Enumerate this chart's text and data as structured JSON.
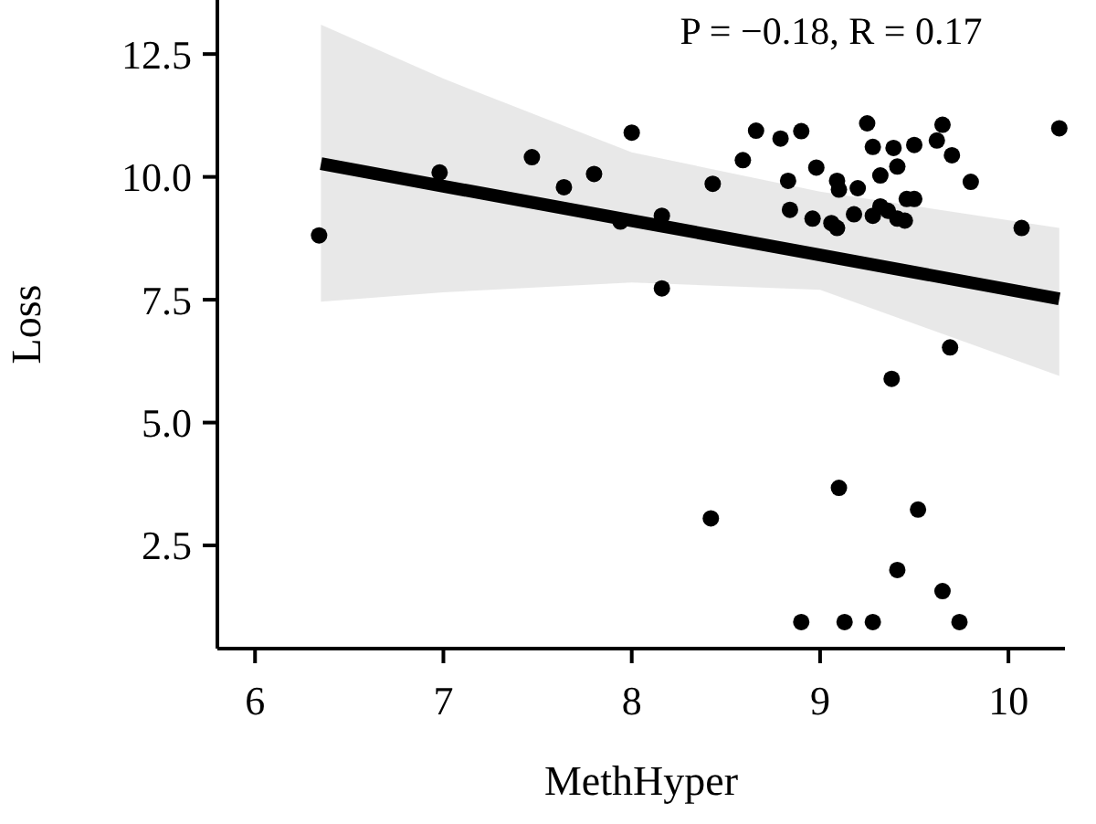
{
  "chart_data": {
    "type": "scatter",
    "xlabel": "MethHyper",
    "ylabel": "Loss",
    "annotations": [
      "P = −0.18, R = 0.17"
    ],
    "xlim": [
      5.8,
      10.3
    ],
    "ylim": [
      0.4,
      13.6
    ],
    "xticks": [
      6,
      7,
      8,
      9,
      10
    ],
    "yticks": [
      {
        "value": 2.5,
        "label": "2.5"
      },
      {
        "value": 5,
        "label": "5.0"
      },
      {
        "value": 7.5,
        "label": "7.5"
      },
      {
        "value": 10,
        "label": "10.0"
      },
      {
        "value": 12.5,
        "label": "12.5"
      }
    ],
    "grid": false,
    "marker": "circle",
    "series": [
      {
        "type": "line",
        "marker": "none",
        "color": "#000000",
        "x": [
          6.35,
          7,
          8,
          9,
          10.27
        ],
        "values": [
          10.27,
          9.81,
          9.11,
          8.41,
          7.52
        ],
        "lower": [
          7.46,
          7.65,
          7.85,
          7.7,
          5.95
        ],
        "upper": [
          13.1,
          12.0,
          10.5,
          9.7,
          8.96
        ]
      },
      {
        "color": "#000000",
        "x": [
          6.34,
          6.98,
          7.47,
          7.64,
          7.8,
          8.0,
          7.94,
          8.16,
          8.16,
          8.43,
          8.59,
          8.66,
          8.79,
          8.9,
          8.83,
          8.84,
          8.96,
          8.98,
          9.06,
          9.09,
          9.09,
          9.1,
          9.2,
          9.18,
          9.25,
          9.28,
          9.32,
          9.28,
          9.32,
          9.36,
          9.39,
          9.41,
          9.41,
          9.45,
          9.46,
          9.5,
          9.5,
          9.62,
          9.65,
          9.7,
          9.8,
          10.07,
          10.27,
          9.69,
          9.38,
          9.1,
          9.52,
          8.42,
          9.41,
          9.65,
          8.9,
          9.13,
          9.28,
          9.74
        ],
        "values": [
          8.81,
          10.09,
          10.4,
          9.79,
          10.06,
          10.9,
          9.09,
          9.21,
          7.73,
          9.86,
          10.34,
          10.94,
          10.78,
          10.93,
          9.92,
          9.33,
          9.15,
          10.19,
          9.06,
          8.96,
          9.92,
          9.74,
          9.77,
          9.24,
          11.09,
          10.61,
          10.03,
          9.21,
          9.4,
          9.31,
          10.59,
          10.21,
          9.15,
          9.11,
          9.55,
          9.55,
          10.65,
          10.74,
          11.06,
          10.44,
          9.9,
          8.96,
          10.99,
          6.53,
          5.89,
          3.67,
          3.23,
          3.05,
          2.0,
          1.57,
          0.94,
          0.94,
          0.94,
          0.94
        ]
      }
    ]
  }
}
